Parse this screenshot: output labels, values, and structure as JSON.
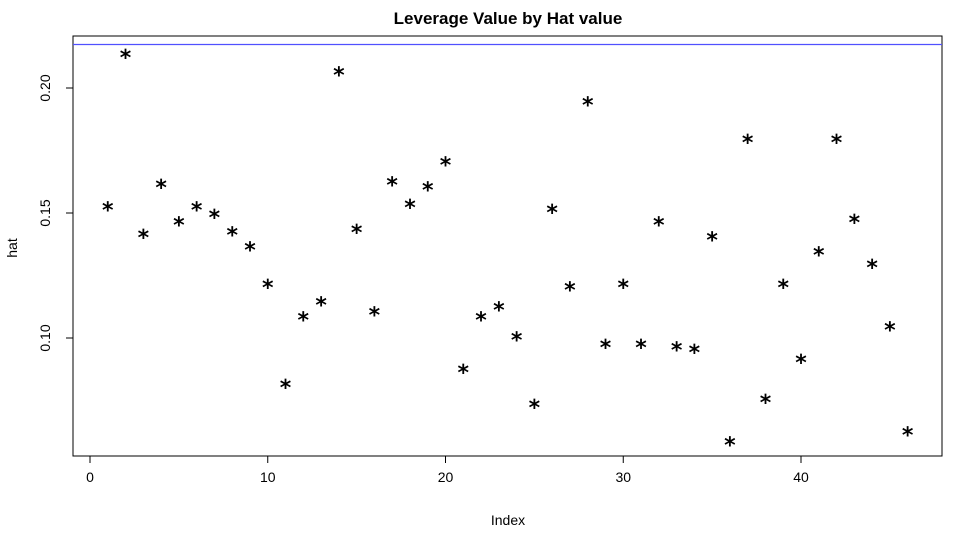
{
  "chart_data": {
    "type": "scatter",
    "title": "Leverage Value by Hat value",
    "xlabel": "Index",
    "ylabel": "hat",
    "point_symbol": "*",
    "xlim": [
      0,
      47
    ],
    "ylim": [
      0.055,
      0.22
    ],
    "x_ticks": [
      0,
      10,
      20,
      30,
      40
    ],
    "x_tick_labels": [
      "0",
      "10",
      "20",
      "30",
      "40"
    ],
    "y_ticks": [
      0.1,
      0.15,
      0.2
    ],
    "y_tick_labels": [
      "0.10",
      "0.15",
      "0.20"
    ],
    "grid": false,
    "reference_line": {
      "y": 0.2174,
      "color": "#5050ff"
    },
    "x": [
      1,
      2,
      3,
      4,
      5,
      6,
      7,
      8,
      9,
      10,
      11,
      12,
      13,
      14,
      15,
      16,
      17,
      18,
      19,
      20,
      21,
      22,
      23,
      24,
      25,
      26,
      27,
      28,
      29,
      30,
      31,
      32,
      33,
      34,
      35,
      36,
      37,
      38,
      39,
      40,
      41,
      42,
      43,
      44,
      45,
      46
    ],
    "y": [
      0.153,
      0.214,
      0.142,
      0.162,
      0.147,
      0.153,
      0.15,
      0.143,
      0.137,
      0.122,
      0.082,
      0.109,
      0.115,
      0.207,
      0.144,
      0.111,
      0.163,
      0.154,
      0.161,
      0.171,
      0.088,
      0.109,
      0.113,
      0.101,
      0.074,
      0.152,
      0.121,
      0.195,
      0.098,
      0.122,
      0.098,
      0.147,
      0.097,
      0.096,
      0.141,
      0.059,
      0.18,
      0.076,
      0.122,
      0.092,
      0.135,
      0.18,
      0.148,
      0.13,
      0.105,
      0.063
    ]
  }
}
